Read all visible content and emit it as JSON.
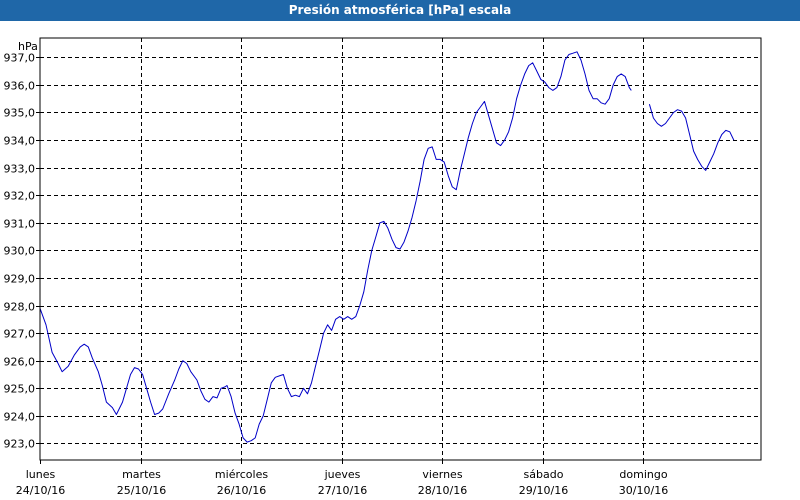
{
  "window": {
    "title": "Presión atmosférica [hPa] escala"
  },
  "colors": {
    "titlebar": "#1f67a8",
    "line": "#0000c8",
    "grid": "#000000"
  },
  "chart_data": {
    "type": "line",
    "title": "Presión atmosférica [hPa] escala",
    "ylabel": "hPa",
    "ylim": [
      922.4,
      937.7
    ],
    "xlim": [
      0,
      7.17
    ],
    "grid": true,
    "yticks": [
      {
        "value": 923,
        "label": "923,0"
      },
      {
        "value": 924,
        "label": "924,0"
      },
      {
        "value": 925,
        "label": "925,0"
      },
      {
        "value": 926,
        "label": "926,0"
      },
      {
        "value": 927,
        "label": "927,0"
      },
      {
        "value": 928,
        "label": "928,0"
      },
      {
        "value": 929,
        "label": "929,0"
      },
      {
        "value": 930,
        "label": "930,0"
      },
      {
        "value": 931,
        "label": "931,0"
      },
      {
        "value": 932,
        "label": "932,0"
      },
      {
        "value": 933,
        "label": "933,0"
      },
      {
        "value": 934,
        "label": "934,0"
      },
      {
        "value": 935,
        "label": "935,0"
      },
      {
        "value": 936,
        "label": "936,0"
      },
      {
        "value": 937,
        "label": "937,0"
      }
    ],
    "xticks": [
      {
        "value": 0,
        "day": "lunes",
        "date": "24/10/16"
      },
      {
        "value": 1,
        "day": "martes",
        "date": "25/10/16"
      },
      {
        "value": 2,
        "day": "miércoles",
        "date": "26/10/16"
      },
      {
        "value": 3,
        "day": "jueves",
        "date": "27/10/16"
      },
      {
        "value": 4,
        "day": "viernes",
        "date": "28/10/16"
      },
      {
        "value": 5,
        "day": "sábado",
        "date": "29/10/16"
      },
      {
        "value": 6,
        "day": "domingo",
        "date": "30/10/16"
      }
    ],
    "series": [
      {
        "segments": [
          [
            [
              0,
              927.9
            ],
            [
              0.06,
              927.3
            ],
            [
              0.12,
              926.3
            ],
            [
              0.18,
              925.9
            ],
            [
              0.22,
              925.6
            ],
            [
              0.28,
              925.8
            ],
            [
              0.34,
              926.2
            ],
            [
              0.4,
              926.5
            ],
            [
              0.44,
              926.6
            ],
            [
              0.48,
              926.5
            ],
            [
              0.52,
              926.1
            ],
            [
              0.58,
              925.6
            ],
            [
              0.62,
              925.1
            ],
            [
              0.66,
              924.5
            ],
            [
              0.72,
              924.3
            ],
            [
              0.76,
              924.05
            ],
            [
              0.82,
              924.5
            ],
            [
              0.86,
              925.0
            ],
            [
              0.9,
              925.5
            ],
            [
              0.94,
              925.75
            ],
            [
              0.98,
              925.7
            ],
            [
              1.02,
              925.5
            ],
            [
              1.06,
              925.0
            ],
            [
              1.1,
              924.5
            ],
            [
              1.14,
              924.05
            ],
            [
              1.18,
              924.1
            ],
            [
              1.22,
              924.25
            ],
            [
              1.28,
              924.8
            ],
            [
              1.34,
              925.3
            ],
            [
              1.38,
              925.7
            ],
            [
              1.42,
              926.0
            ],
            [
              1.46,
              925.9
            ],
            [
              1.5,
              925.6
            ],
            [
              1.56,
              925.3
            ],
            [
              1.6,
              924.9
            ],
            [
              1.64,
              924.6
            ],
            [
              1.68,
              924.5
            ],
            [
              1.72,
              924.7
            ],
            [
              1.76,
              924.65
            ],
            [
              1.8,
              925.0
            ],
            [
              1.84,
              925.05
            ],
            [
              1.86,
              925.1
            ],
            [
              1.9,
              924.7
            ],
            [
              1.94,
              924.1
            ],
            [
              1.98,
              923.7
            ],
            [
              2.02,
              923.2
            ],
            [
              2.06,
              923.05
            ],
            [
              2.1,
              923.1
            ],
            [
              2.14,
              923.2
            ],
            [
              2.18,
              923.7
            ],
            [
              2.22,
              924.0
            ],
            [
              2.26,
              924.6
            ],
            [
              2.3,
              925.2
            ],
            [
              2.34,
              925.4
            ],
            [
              2.38,
              925.45
            ],
            [
              2.42,
              925.5
            ],
            [
              2.46,
              925.0
            ],
            [
              2.5,
              924.7
            ],
            [
              2.54,
              924.75
            ],
            [
              2.58,
              924.7
            ],
            [
              2.62,
              925.0
            ],
            [
              2.66,
              924.8
            ],
            [
              2.7,
              925.2
            ],
            [
              2.74,
              925.8
            ],
            [
              2.78,
              926.4
            ],
            [
              2.82,
              927.0
            ],
            [
              2.86,
              927.3
            ],
            [
              2.9,
              927.1
            ],
            [
              2.94,
              927.5
            ],
            [
              2.98,
              927.6
            ],
            [
              3.02,
              927.5
            ],
            [
              3.06,
              927.6
            ],
            [
              3.1,
              927.5
            ],
            [
              3.14,
              927.6
            ],
            [
              3.18,
              928.0
            ],
            [
              3.22,
              928.5
            ],
            [
              3.26,
              929.3
            ],
            [
              3.3,
              930.0
            ],
            [
              3.34,
              930.5
            ],
            [
              3.38,
              931.0
            ],
            [
              3.42,
              931.05
            ],
            [
              3.46,
              930.8
            ],
            [
              3.5,
              930.4
            ],
            [
              3.54,
              930.1
            ],
            [
              3.58,
              930.05
            ],
            [
              3.62,
              930.3
            ],
            [
              3.66,
              930.7
            ],
            [
              3.7,
              931.2
            ],
            [
              3.74,
              931.8
            ],
            [
              3.78,
              932.5
            ],
            [
              3.82,
              933.3
            ],
            [
              3.86,
              933.7
            ],
            [
              3.9,
              933.75
            ],
            [
              3.94,
              933.3
            ],
            [
              3.98,
              933.3
            ],
            [
              4.02,
              933.2
            ],
            [
              4.06,
              932.7
            ],
            [
              4.1,
              932.3
            ],
            [
              4.14,
              932.2
            ],
            [
              4.18,
              932.9
            ],
            [
              4.22,
              933.5
            ],
            [
              4.26,
              934.1
            ],
            [
              4.3,
              934.6
            ],
            [
              4.34,
              935.0
            ],
            [
              4.38,
              935.2
            ],
            [
              4.42,
              935.4
            ],
            [
              4.46,
              934.9
            ],
            [
              4.5,
              934.4
            ],
            [
              4.54,
              933.9
            ],
            [
              4.58,
              933.8
            ],
            [
              4.62,
              934.0
            ],
            [
              4.66,
              934.3
            ],
            [
              4.7,
              934.8
            ],
            [
              4.74,
              935.5
            ],
            [
              4.78,
              936.0
            ],
            [
              4.82,
              936.4
            ],
            [
              4.86,
              936.7
            ],
            [
              4.9,
              936.8
            ],
            [
              4.94,
              936.5
            ],
            [
              4.98,
              936.2
            ],
            [
              5.02,
              936.1
            ],
            [
              5.06,
              935.9
            ],
            [
              5.1,
              935.8
            ],
            [
              5.14,
              935.9
            ],
            [
              5.18,
              936.3
            ],
            [
              5.22,
              936.9
            ],
            [
              5.26,
              937.1
            ],
            [
              5.3,
              937.15
            ],
            [
              5.34,
              937.2
            ],
            [
              5.38,
              936.9
            ],
            [
              5.42,
              936.4
            ],
            [
              5.46,
              935.8
            ],
            [
              5.5,
              935.5
            ],
            [
              5.54,
              935.5
            ],
            [
              5.58,
              935.35
            ],
            [
              5.62,
              935.3
            ],
            [
              5.66,
              935.5
            ],
            [
              5.7,
              936.0
            ],
            [
              5.74,
              936.3
            ],
            [
              5.78,
              936.4
            ],
            [
              5.82,
              936.3
            ],
            [
              5.86,
              935.9
            ],
            [
              5.88,
              935.8
            ]
          ],
          [
            [
              6.06,
              935.3
            ],
            [
              6.1,
              934.8
            ],
            [
              6.14,
              934.6
            ],
            [
              6.18,
              934.5
            ],
            [
              6.22,
              934.6
            ],
            [
              6.26,
              934.8
            ],
            [
              6.3,
              935.0
            ],
            [
              6.34,
              935.1
            ],
            [
              6.38,
              935.05
            ],
            [
              6.42,
              934.8
            ],
            [
              6.46,
              934.2
            ],
            [
              6.5,
              933.6
            ],
            [
              6.54,
              933.3
            ],
            [
              6.58,
              933.05
            ],
            [
              6.62,
              932.9
            ],
            [
              6.66,
              933.2
            ],
            [
              6.7,
              933.5
            ],
            [
              6.74,
              933.9
            ],
            [
              6.78,
              934.2
            ],
            [
              6.82,
              934.35
            ],
            [
              6.86,
              934.3
            ],
            [
              6.9,
              934.0
            ]
          ]
        ]
      }
    ]
  }
}
